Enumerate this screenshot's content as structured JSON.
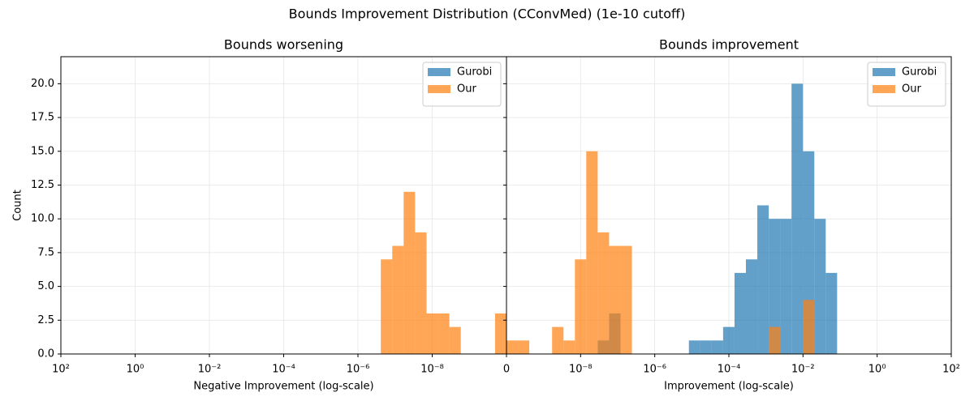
{
  "title": "Bounds Improvement Distribution (CConvMed) (1e-10 cutoff)",
  "chart_data": [
    {
      "type": "histogram",
      "title": "Bounds worsening",
      "xlabel": "Negative Improvement (log-scale)",
      "ylabel": "Count",
      "xscale": "log",
      "xlim": [
        100,
        1e-10
      ],
      "xticks": [
        {
          "value": 100,
          "label": "10²"
        },
        {
          "value": 1,
          "label": "10⁰"
        },
        {
          "value": 0.01,
          "label": "10⁻²"
        },
        {
          "value": 0.0001,
          "label": "10⁻⁴"
        },
        {
          "value": 1e-06,
          "label": "10⁻⁶"
        },
        {
          "value": 1e-08,
          "label": "10⁻⁸"
        }
      ],
      "ylim": [
        0,
        22
      ],
      "yticks": [
        {
          "value": 0,
          "label": "0.0"
        },
        {
          "value": 2.5,
          "label": "2.5"
        },
        {
          "value": 5,
          "label": "5.0"
        },
        {
          "value": 7.5,
          "label": "7.5"
        },
        {
          "value": 10,
          "label": "10.0"
        },
        {
          "value": 12.5,
          "label": "12.5"
        },
        {
          "value": 15,
          "label": "15.0"
        },
        {
          "value": 17.5,
          "label": "17.5"
        },
        {
          "value": 20,
          "label": "20.0"
        }
      ],
      "grid": true,
      "legend": "upper right",
      "alpha": 0.7,
      "series": [
        {
          "name": "Gurobi",
          "color": "#1f77b4",
          "bins": [
            1e-10,
            2.03e-10,
            4.12e-10,
            8.37e-10,
            1.7e-09,
            3.45e-09,
            7.01e-09,
            1.42e-08,
            2.89e-08,
            5.87e-08,
            1.19e-07,
            2.42e-07
          ],
          "values": [
            0,
            0,
            0,
            0,
            0,
            0,
            0,
            0,
            0,
            0,
            0
          ]
        },
        {
          "name": "Our",
          "color": "#ff7f0e",
          "bins": [
            1e-10,
            2.03e-10,
            4.12e-10,
            8.37e-10,
            1.7e-09,
            3.45e-09,
            7.01e-09,
            1.42e-08,
            2.89e-08,
            5.87e-08,
            1.19e-07,
            2.42e-07
          ],
          "values": [
            3,
            0,
            0,
            0,
            2,
            3,
            3,
            9,
            12,
            8,
            7
          ]
        }
      ]
    },
    {
      "type": "histogram",
      "title": "Bounds improvement",
      "xlabel": "Improvement (log-scale)",
      "xscale": "log",
      "xlim": [
        1e-10,
        100
      ],
      "xticks": [
        {
          "value": 1e-10,
          "label": "0"
        },
        {
          "value": 1e-08,
          "label": "10⁻⁸"
        },
        {
          "value": 1e-06,
          "label": "10⁻⁶"
        },
        {
          "value": 0.0001,
          "label": "10⁻⁴"
        },
        {
          "value": 0.01,
          "label": "10⁻²"
        },
        {
          "value": 1,
          "label": "10⁰"
        },
        {
          "value": 100,
          "label": "10²"
        }
      ],
      "ylim": [
        0,
        22
      ],
      "yticks": [
        0,
        2.5,
        5,
        7.5,
        10,
        12.5,
        15,
        17.5,
        20
      ],
      "grid": true,
      "legend": "upper right",
      "alpha": 0.7,
      "series": [
        {
          "name": "Gurobi",
          "color": "#1f77b4",
          "bins": [
            2.89e-08,
            5.87e-08,
            1.19e-07,
            2.42e-07,
            4.91e-07,
            9.97e-07,
            2.02e-06,
            4.11e-06,
            8.35e-06,
            1.7e-05,
            3.44e-05,
            6.99e-05,
            0.000142,
            0.000288,
            0.000585,
            0.00119,
            0.00241,
            0.0049,
            0.00995,
            0.0202,
            0.041,
            0.0832
          ],
          "values": [
            1,
            3,
            0,
            0,
            0,
            0,
            0,
            0,
            1,
            1,
            1,
            2,
            6,
            7,
            11,
            10,
            10,
            20,
            15,
            10,
            6
          ]
        },
        {
          "name": "Our",
          "color": "#ff7f0e",
          "bins": [
            1e-10,
            2.03e-10,
            4.12e-10,
            8.37e-10,
            1.7e-09,
            3.45e-09,
            7.01e-09,
            1.42e-08,
            2.89e-08,
            5.87e-08,
            1.19e-07,
            2.42e-07,
            4.91e-07,
            9.97e-07,
            2.02e-06,
            4.11e-06,
            8.35e-06,
            1.7e-05,
            3.44e-05,
            6.99e-05,
            0.000142,
            0.000288,
            0.000585,
            0.00119,
            0.00241,
            0.0049,
            0.00995,
            0.0202
          ],
          "values": [
            1,
            1,
            0,
            0,
            2,
            1,
            7,
            15,
            9,
            8,
            8,
            0,
            0,
            0,
            0,
            0,
            0,
            0,
            0,
            0,
            0,
            0,
            0,
            2,
            0,
            0,
            4
          ]
        }
      ]
    }
  ]
}
